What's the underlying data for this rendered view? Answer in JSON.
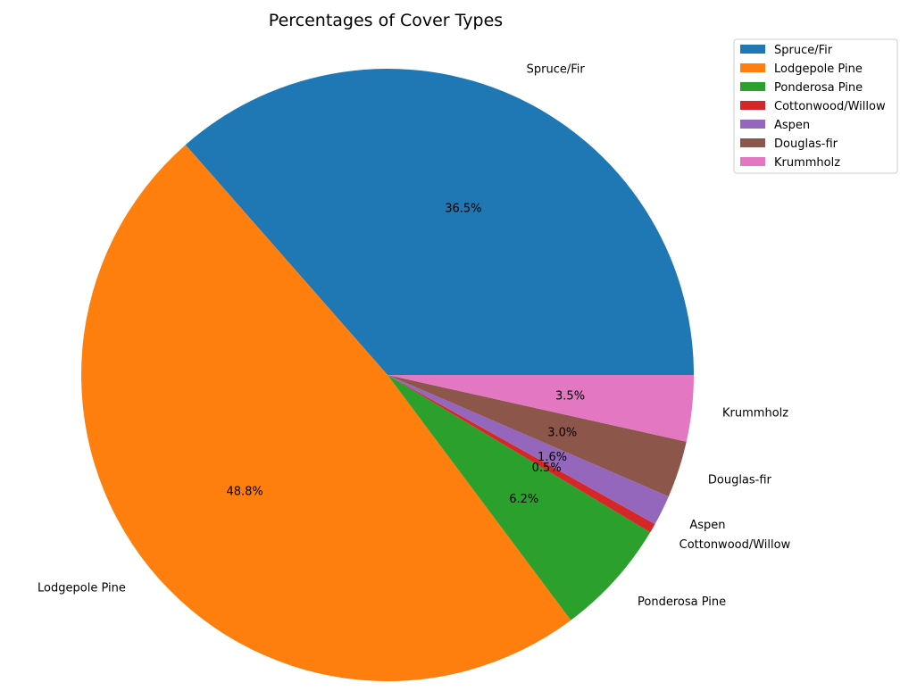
{
  "chart_data": {
    "type": "pie",
    "title": "Percentages of Cover Types",
    "categories": [
      "Spruce/Fir",
      "Lodgepole Pine",
      "Ponderosa Pine",
      "Cottonwood/Willow",
      "Aspen",
      "Douglas-fir",
      "Krummholz"
    ],
    "values": [
      36.5,
      48.8,
      6.2,
      0.5,
      1.6,
      3.0,
      3.5
    ],
    "value_labels": [
      "36.5%",
      "48.8%",
      "6.2%",
      "0.5%",
      "1.6%",
      "3.0%",
      "3.5%"
    ],
    "colors": [
      "#1f77b4",
      "#ff7f0e",
      "#2ca02c",
      "#d62728",
      "#9467bd",
      "#8c564b",
      "#e377c2"
    ],
    "start_angle_deg": 0,
    "direction": "counterclockwise",
    "legend_position": "top-right"
  }
}
